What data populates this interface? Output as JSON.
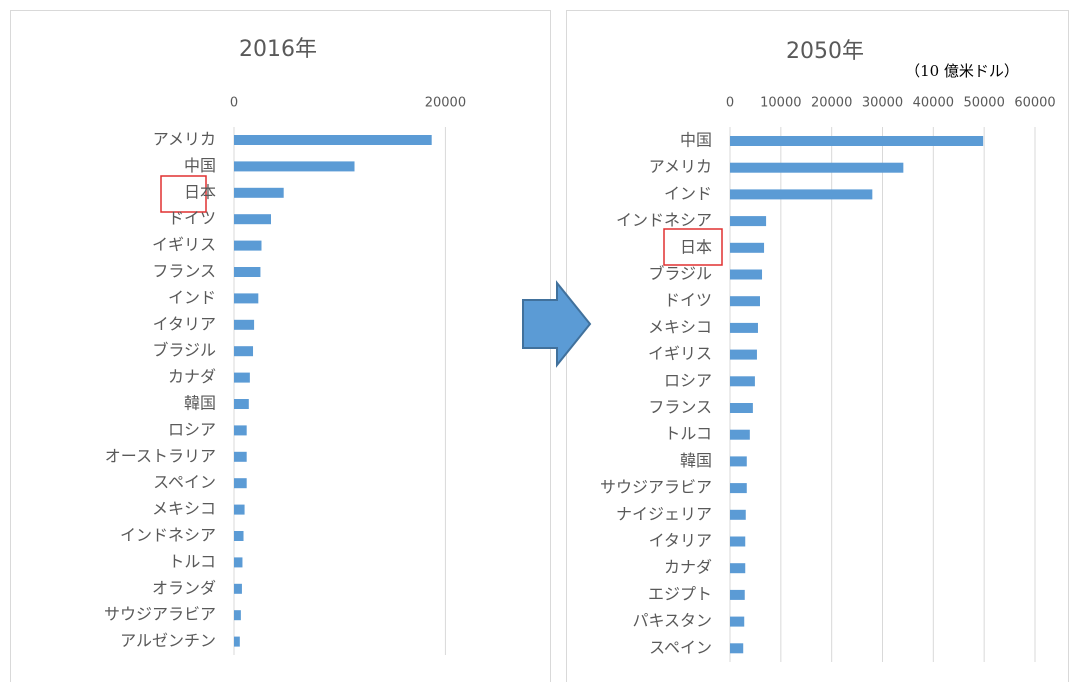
{
  "chart_data": [
    {
      "type": "bar",
      "orientation": "horizontal",
      "title": "2016年",
      "categories": [
        "アメリカ",
        "中国",
        "日本",
        "ドイツ",
        "イギリス",
        "フランス",
        "インド",
        "イタリア",
        "ブラジル",
        "カナダ",
        "韓国",
        "ロシア",
        "オーストラリア",
        "スペイン",
        "メキシコ",
        "インドネシア",
        "トルコ",
        "オランダ",
        "サウジアラビア",
        "アルゼンチン"
      ],
      "values": [
        18700,
        11400,
        4700,
        3500,
        2600,
        2500,
        2300,
        1900,
        1800,
        1500,
        1400,
        1200,
        1200,
        1200,
        1000,
        900,
        800,
        750,
        650,
        550
      ],
      "color": "#5b9bd5",
      "xlim": [
        0,
        28000
      ],
      "xticks": [
        0,
        20000
      ],
      "grid": true
    },
    {
      "type": "bar",
      "orientation": "horizontal",
      "title": "2050年",
      "annotation": "（10 億米ドル）",
      "categories": [
        "中国",
        "アメリカ",
        "インド",
        "インドネシア",
        "日本",
        "ブラジル",
        "ドイツ",
        "メキシコ",
        "イギリス",
        "ロシア",
        "フランス",
        "トルコ",
        "韓国",
        "サウジアラビア",
        "ナイジェリア",
        "イタリア",
        "カナダ",
        "エジプト",
        "パキスタン",
        "スペイン"
      ],
      "values": [
        49800,
        34100,
        28000,
        7100,
        6700,
        6300,
        5900,
        5500,
        5300,
        4900,
        4500,
        3900,
        3300,
        3300,
        3100,
        3000,
        3000,
        2900,
        2800,
        2600
      ],
      "color": "#5b9bd5",
      "xlim": [
        0,
        60000
      ],
      "xticks": [
        0,
        10000,
        20000,
        30000,
        40000,
        50000,
        60000
      ],
      "grid": true
    }
  ]
}
